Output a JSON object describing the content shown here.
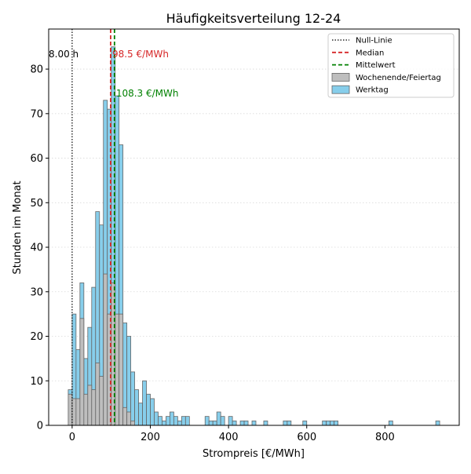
{
  "chart_data": {
    "type": "bar",
    "title": "Häufigkeitsverteilung 12-24",
    "xlabel": "Strompreis [€/MWh]",
    "ylabel": "Stunden im Monat",
    "xlim": [
      -60,
      990
    ],
    "ylim": [
      0,
      89
    ],
    "xticks": [
      0,
      200,
      400,
      600,
      800
    ],
    "yticks": [
      0,
      10,
      20,
      30,
      40,
      50,
      60,
      70,
      80
    ],
    "grid": "horizontal-dotted",
    "legend_position": "top-right",
    "bin_width": 10,
    "series": [
      {
        "name": "Werktag",
        "color": "#87ceeb",
        "bins": [
          [
            -10,
            8
          ],
          [
            0,
            25
          ],
          [
            10,
            17
          ],
          [
            20,
            32
          ],
          [
            30,
            15
          ],
          [
            40,
            22
          ],
          [
            50,
            31
          ],
          [
            60,
            48
          ],
          [
            70,
            45
          ],
          [
            80,
            73
          ],
          [
            90,
            71
          ],
          [
            100,
            85
          ],
          [
            110,
            74
          ],
          [
            120,
            63
          ],
          [
            130,
            23
          ],
          [
            140,
            20
          ],
          [
            150,
            12
          ],
          [
            160,
            8
          ],
          [
            170,
            5
          ],
          [
            180,
            10
          ],
          [
            190,
            7
          ],
          [
            200,
            6
          ],
          [
            210,
            3
          ],
          [
            220,
            2
          ],
          [
            230,
            1
          ],
          [
            240,
            2
          ],
          [
            250,
            3
          ],
          [
            260,
            2
          ],
          [
            270,
            1
          ],
          [
            280,
            2
          ],
          [
            290,
            2
          ],
          [
            340,
            2
          ],
          [
            350,
            1
          ],
          [
            360,
            1
          ],
          [
            370,
            3
          ],
          [
            380,
            2
          ],
          [
            400,
            2
          ],
          [
            410,
            1
          ],
          [
            430,
            1
          ],
          [
            440,
            1
          ],
          [
            460,
            1
          ],
          [
            490,
            1
          ],
          [
            540,
            1
          ],
          [
            550,
            1
          ],
          [
            590,
            1
          ],
          [
            640,
            1
          ],
          [
            650,
            1
          ],
          [
            660,
            1
          ],
          [
            670,
            1
          ],
          [
            810,
            1
          ],
          [
            930,
            1
          ]
        ]
      },
      {
        "name": "Wochenende/Feiertag",
        "color": "#bebebe",
        "bins": [
          [
            -10,
            7
          ],
          [
            0,
            6
          ],
          [
            10,
            6
          ],
          [
            20,
            24
          ],
          [
            30,
            7
          ],
          [
            40,
            9
          ],
          [
            50,
            8
          ],
          [
            60,
            14
          ],
          [
            70,
            11
          ],
          [
            80,
            34
          ],
          [
            90,
            25
          ],
          [
            100,
            32
          ],
          [
            110,
            25
          ],
          [
            120,
            25
          ],
          [
            130,
            4
          ],
          [
            140,
            3
          ],
          [
            150,
            1
          ]
        ]
      }
    ],
    "reference_lines": [
      {
        "name": "Null-Linie",
        "x": 0,
        "color": "#000000",
        "style": "dotted",
        "label": "8.00 h"
      },
      {
        "name": "Median",
        "x": 98.5,
        "color": "#d62728",
        "style": "dashed",
        "label": "98.5 €/MWh"
      },
      {
        "name": "Mittelwert",
        "x": 108.3,
        "color": "#008000",
        "style": "dashed",
        "label": "108.3 €/MWh"
      }
    ]
  }
}
